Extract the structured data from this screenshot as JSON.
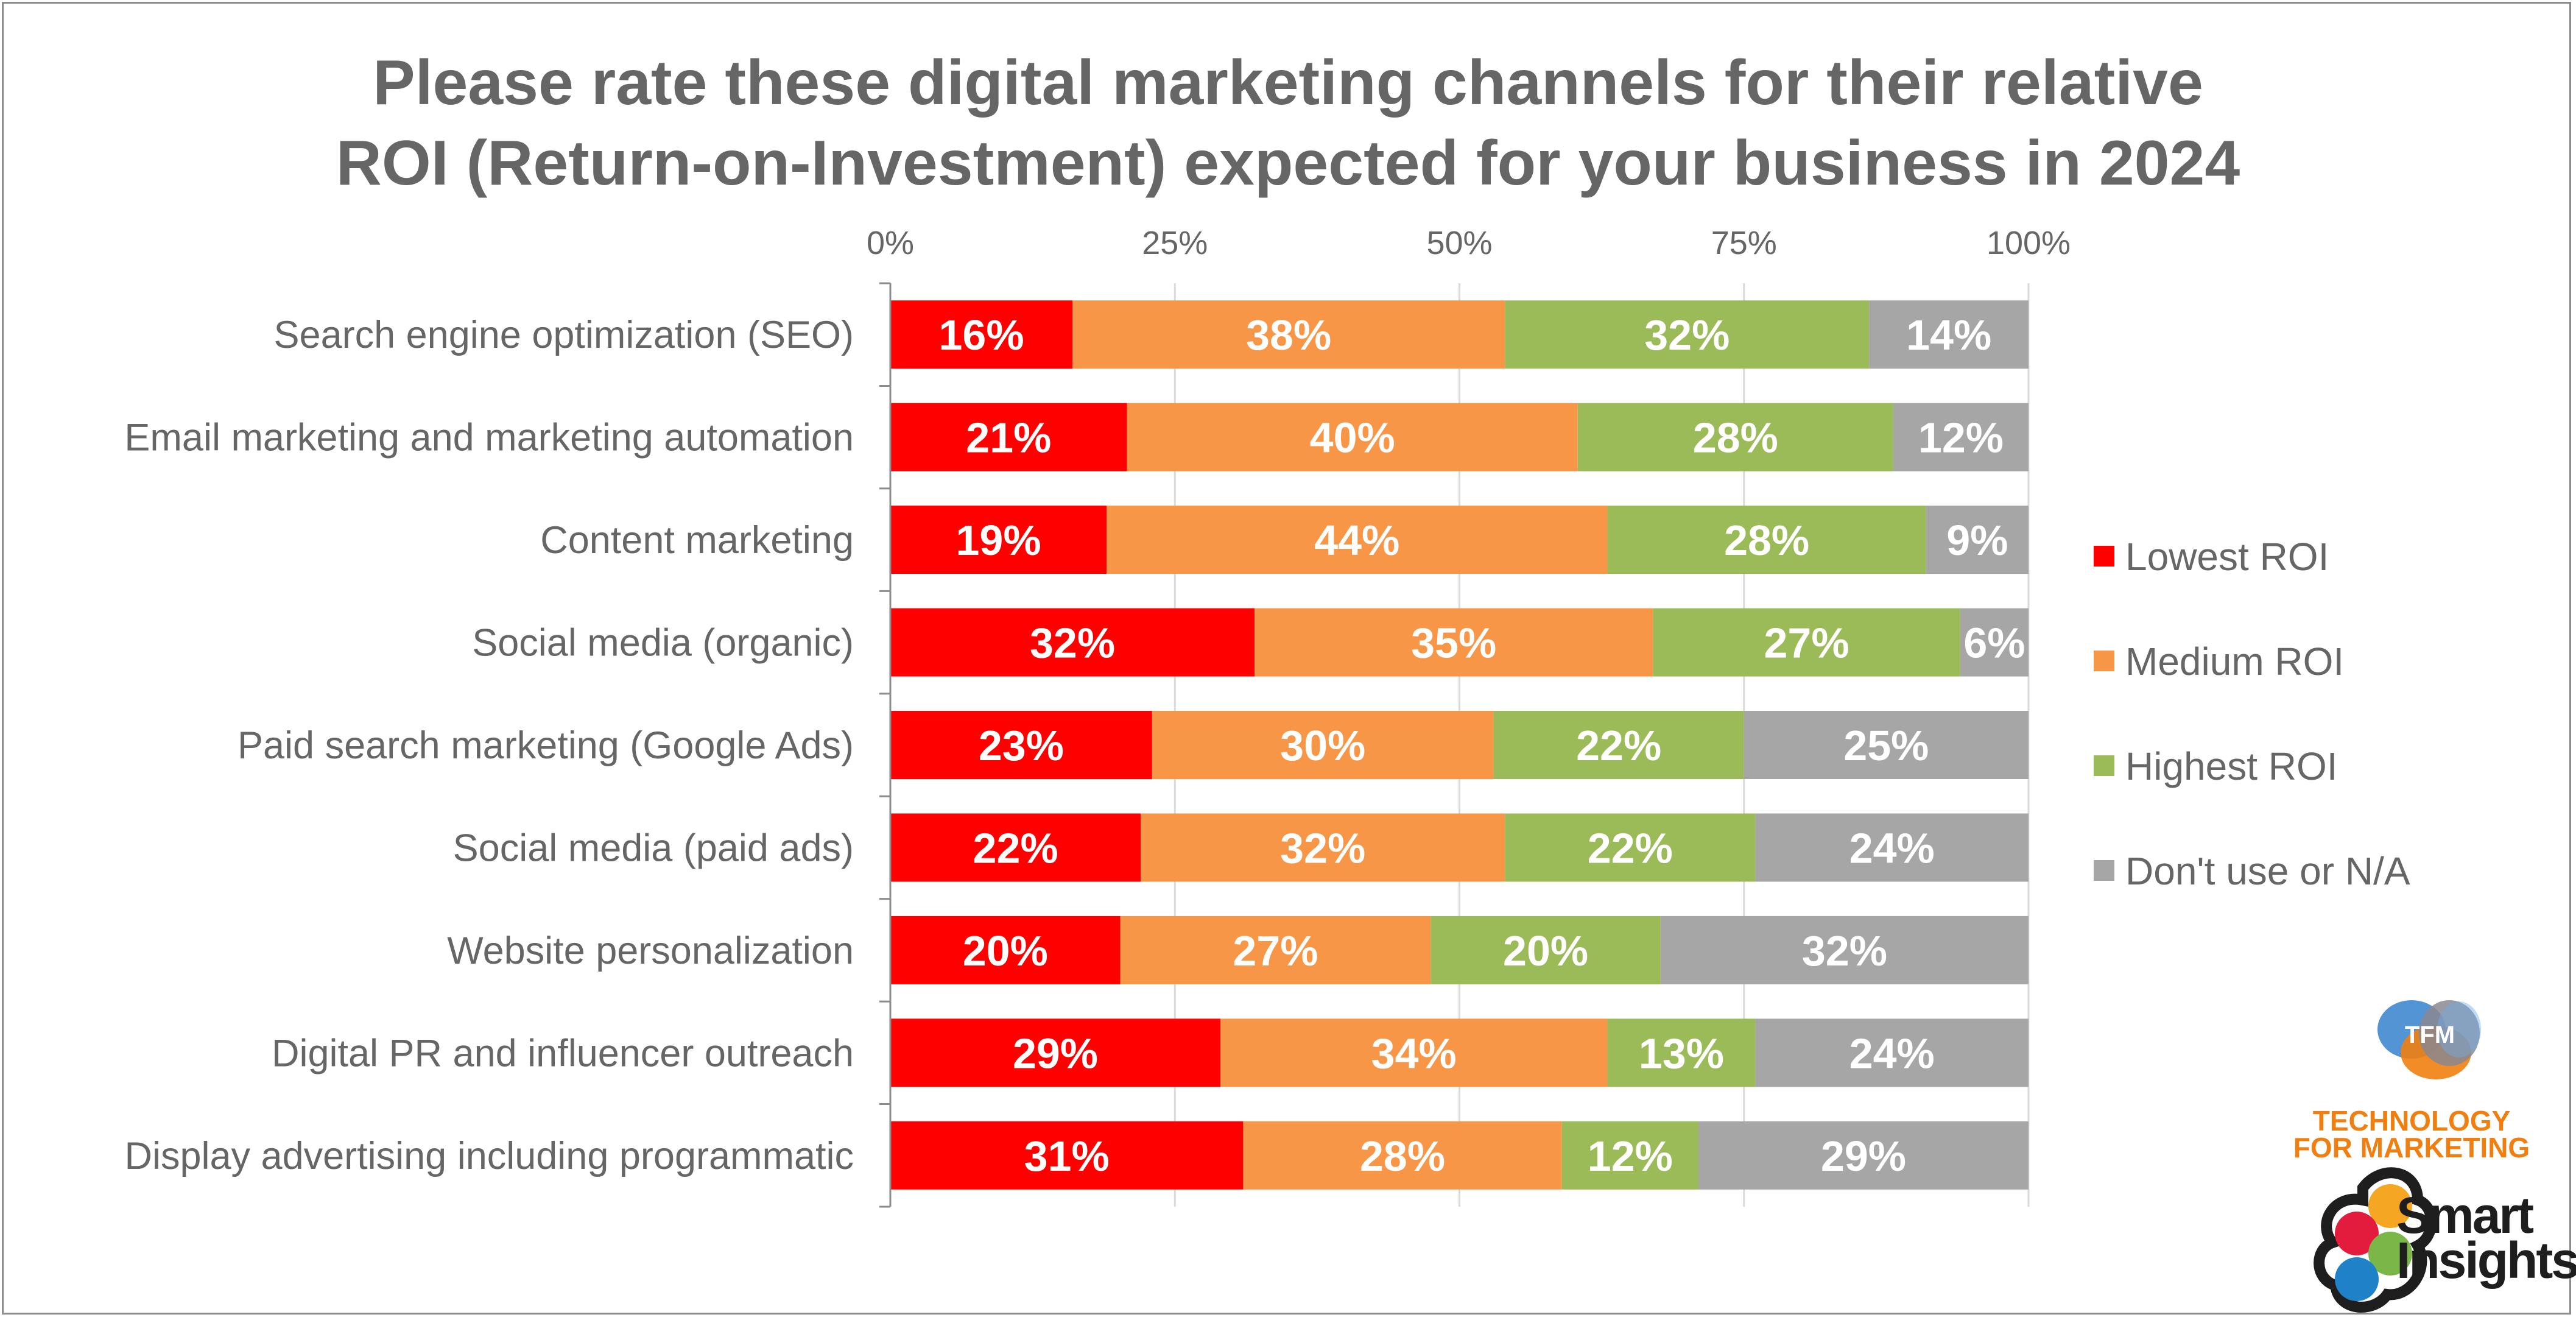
{
  "chart_data": {
    "type": "bar",
    "orientation": "horizontal",
    "stacked": "percent",
    "title": "Please rate these digital marketing channels for their relative ROI (Return-on-Investment) expected for your business in 2024",
    "title_lines": [
      "Please rate these digital marketing channels for their relative",
      "ROI (Return-on-Investment) expected for your business in 2024"
    ],
    "xlabel": "",
    "ylabel": "",
    "xlim": [
      0,
      100
    ],
    "x_ticks": [
      "0%",
      "25%",
      "50%",
      "75%",
      "100%"
    ],
    "x_tick_values": [
      0,
      25,
      50,
      75,
      100
    ],
    "x_axis_position": "top",
    "grid": true,
    "legend_position": "right",
    "categories": [
      "Search engine optimization (SEO)",
      "Email marketing and marketing automation",
      "Content marketing",
      "Social media (organic)",
      "Paid search marketing (Google Ads)",
      "Social media (paid ads)",
      "Website personalization",
      "Digital PR and influencer outreach",
      "Display advertising including programmatic"
    ],
    "series": [
      {
        "name": "Lowest ROI",
        "color": "#FF0000",
        "values": [
          16,
          21,
          19,
          32,
          23,
          22,
          20,
          29,
          31
        ]
      },
      {
        "name": "Medium ROI",
        "color": "#F79646",
        "values": [
          38,
          40,
          44,
          35,
          30,
          32,
          27,
          34,
          28
        ]
      },
      {
        "name": "Highest ROI",
        "color": "#9BBB59",
        "values": [
          32,
          28,
          28,
          27,
          22,
          22,
          20,
          13,
          12
        ]
      },
      {
        "name": "Don't use or N/A",
        "color": "#A6A6A6",
        "values": [
          14,
          12,
          9,
          6,
          25,
          24,
          32,
          24,
          29
        ]
      }
    ],
    "value_suffix": "%"
  },
  "branding": {
    "tfm_mark": "TFM",
    "tfm_line1": "TECHNOLOGY",
    "tfm_line2": "FOR MARKETING",
    "smart_insights_line1": "Smart",
    "smart_insights_line2": "Insights"
  },
  "colors": {
    "text": "#666666",
    "frame": "#8C8C8C",
    "gridline": "#D9D9D9",
    "axis": "#8C8C8C",
    "tfm_orange": "#F07F10"
  }
}
